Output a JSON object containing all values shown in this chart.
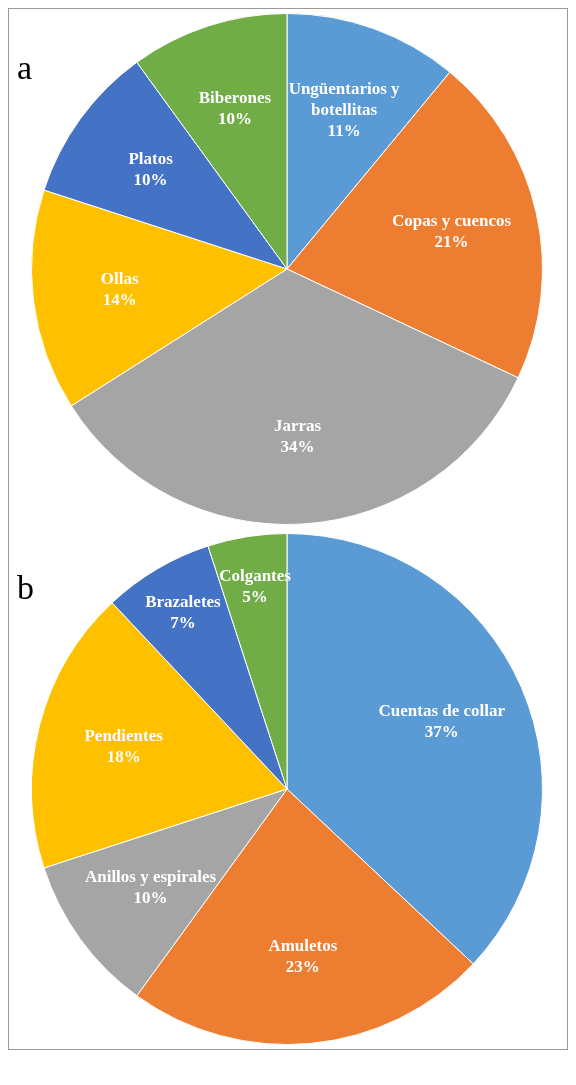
{
  "chart_data": [
    {
      "type": "pie",
      "title": "a",
      "categories": [
        "Ungüentarios y botellitas",
        "Copas y cuencos",
        "Jarras",
        "Ollas",
        "Platos",
        "Biberones"
      ],
      "values": [
        11,
        21,
        34,
        14,
        10,
        10
      ],
      "value_labels": [
        "11%",
        "21%",
        "34%",
        "14%",
        "10%",
        "10%"
      ],
      "colors": [
        "#5b9bd5",
        "#ed7d31",
        "#a5a5a5",
        "#ffc000",
        "#4472c4",
        "#70ad47"
      ],
      "legend": false
    },
    {
      "type": "pie",
      "title": "b",
      "categories": [
        "Cuentas de collar",
        "Amuletos",
        "Anillos y espirales",
        "Pendientes",
        "Brazaletes",
        "Colgantes"
      ],
      "values": [
        37,
        23,
        10,
        18,
        7,
        5
      ],
      "value_labels": [
        "37%",
        "23%",
        "10%",
        "18%",
        "7%",
        "5%"
      ],
      "colors": [
        "#5b9bd5",
        "#ed7d31",
        "#a5a5a5",
        "#ffc000",
        "#4472c4",
        "#70ad47"
      ],
      "legend": false
    }
  ]
}
